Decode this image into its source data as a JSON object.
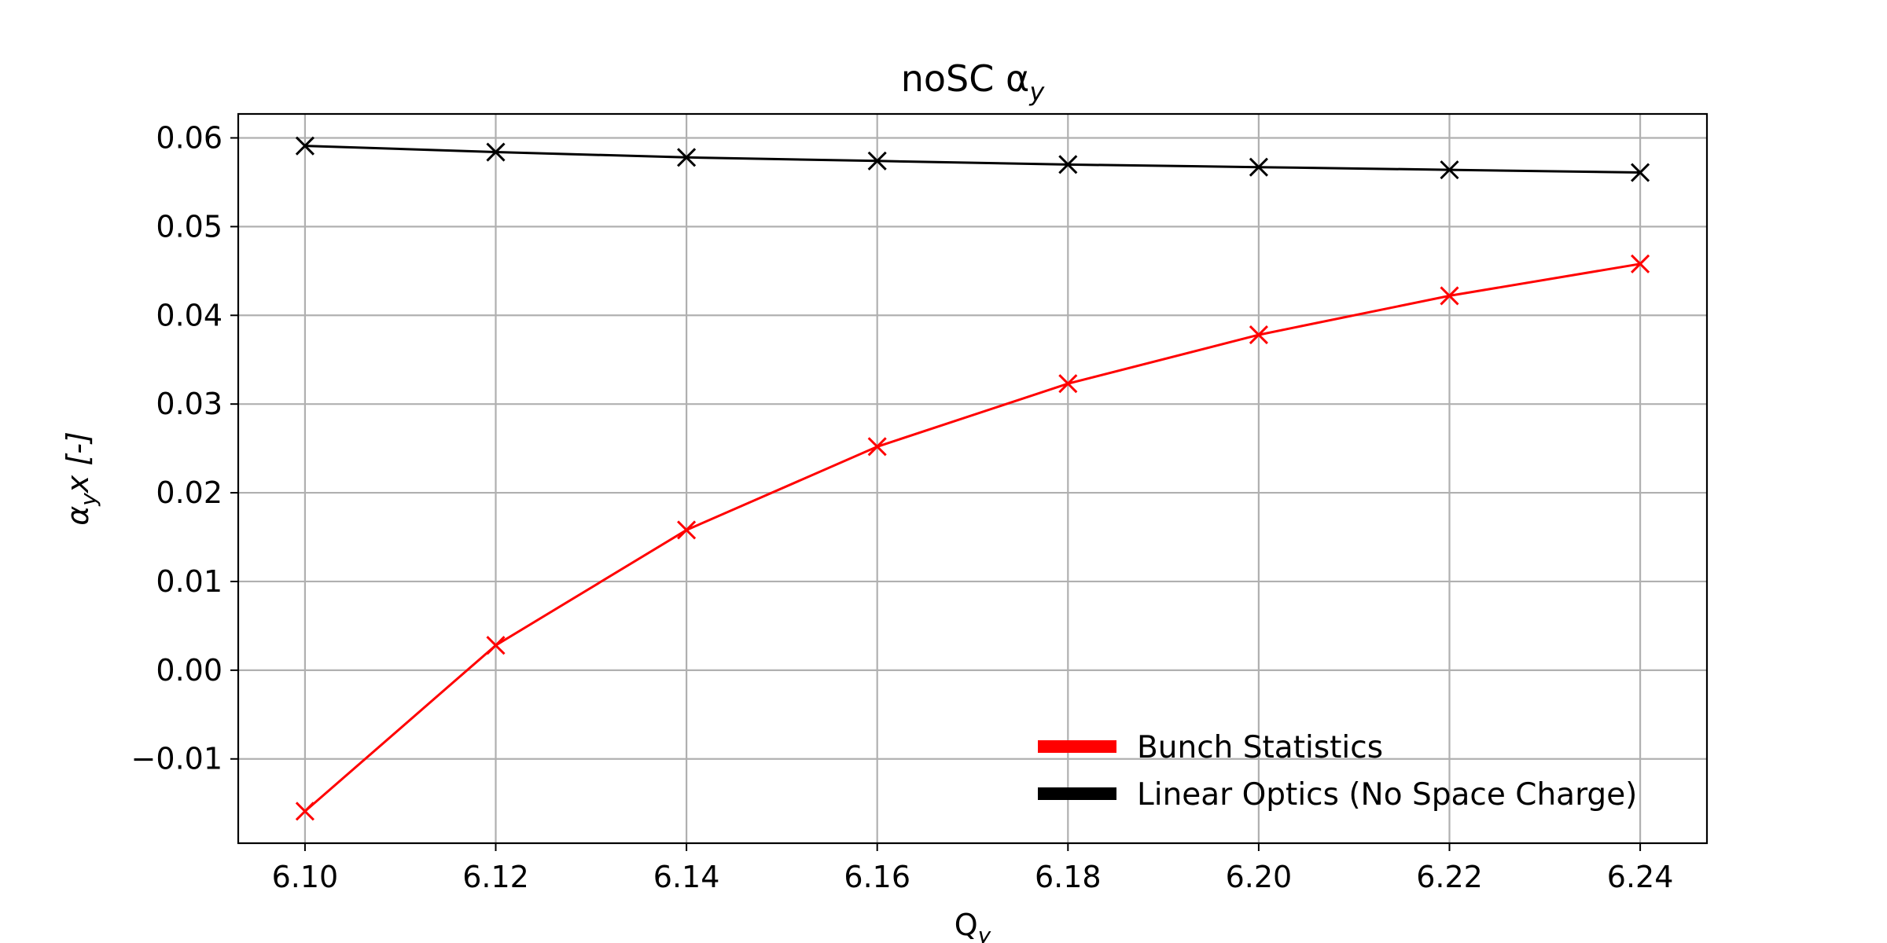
{
  "chart_data": {
    "type": "line",
    "title": "noSC α",
    "title_subscript": "y",
    "xlabel": "Q",
    "xlabel_subscript": "y",
    "ylabel": "α",
    "ylabel_subscript": "y",
    "ylabel_suffix": "x [-]",
    "x": [
      6.1,
      6.12,
      6.14,
      6.16,
      6.18,
      6.2,
      6.22,
      6.24
    ],
    "xlim": [
      6.093,
      6.247
    ],
    "ylim": [
      -0.0195,
      0.0627
    ],
    "x_ticks": [
      6.1,
      6.12,
      6.14,
      6.16,
      6.18,
      6.2,
      6.22,
      6.24
    ],
    "x_tick_labels": [
      "6.10",
      "6.12",
      "6.14",
      "6.16",
      "6.18",
      "6.20",
      "6.22",
      "6.24"
    ],
    "y_ticks": [
      -0.01,
      0.0,
      0.01,
      0.02,
      0.03,
      0.04,
      0.05,
      0.06
    ],
    "y_tick_labels": [
      "−0.01",
      "0.00",
      "0.01",
      "0.02",
      "0.03",
      "0.04",
      "0.05",
      "0.06"
    ],
    "grid": true,
    "legend_position": "bottom-right",
    "series": [
      {
        "name": "Bunch Statistics",
        "color": "#ff0000",
        "marker": "x",
        "values": [
          -0.0159,
          0.0028,
          0.0158,
          0.0252,
          0.0323,
          0.0378,
          0.0422,
          0.0458
        ]
      },
      {
        "name": "Linear Optics (No Space Charge)",
        "color": "#000000",
        "marker": "x",
        "values": [
          0.0591,
          0.0584,
          0.0578,
          0.0574,
          0.057,
          0.0567,
          0.0564,
          0.0561
        ]
      }
    ]
  }
}
